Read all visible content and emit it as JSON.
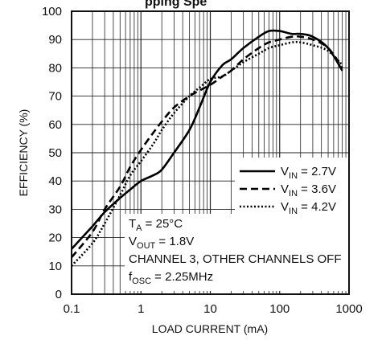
{
  "title_fragment": "pping Spe",
  "chart_data": {
    "type": "line",
    "xlabel": "LOAD CURRENT (mA)",
    "ylabel": "EFFICIENCY (%)",
    "xscale": "log",
    "xlim": [
      0.1,
      1000
    ],
    "ylim": [
      0,
      100
    ],
    "grid": true,
    "x_ticks": [
      "0.1",
      "1",
      "10",
      "100",
      "1000"
    ],
    "y_ticks": [
      "0",
      "10",
      "20",
      "30",
      "40",
      "50",
      "60",
      "70",
      "80",
      "90",
      "100"
    ],
    "legend_position": "center-right",
    "series": [
      {
        "name": "2.7V",
        "dash": "solid",
        "x": [
          0.1,
          0.2,
          0.3,
          0.5,
          0.7,
          1,
          1.5,
          2,
          3,
          5,
          7,
          10,
          15,
          20,
          30,
          50,
          70,
          100,
          150,
          200,
          300,
          500,
          800
        ],
        "y": [
          16,
          24,
          29,
          34,
          37,
          40,
          42,
          44,
          50,
          58,
          66,
          75,
          81,
          83,
          87,
          91,
          93,
          93,
          92,
          92,
          91,
          87,
          79
        ]
      },
      {
        "name": "3.6V",
        "dash": "dashed",
        "x": [
          0.1,
          0.2,
          0.3,
          0.5,
          0.7,
          1,
          1.5,
          2,
          3,
          5,
          7,
          10,
          15,
          20,
          30,
          50,
          70,
          100,
          150,
          200,
          300,
          500,
          800
        ],
        "y": [
          13,
          22,
          30,
          38,
          45,
          51,
          57,
          61,
          66,
          70,
          72,
          74,
          77,
          79,
          83,
          87,
          89,
          90,
          91,
          91,
          90,
          87,
          80
        ]
      },
      {
        "name": "4.2V",
        "dash": "dotted",
        "x": [
          0.1,
          0.2,
          0.3,
          0.5,
          0.7,
          1,
          1.5,
          2,
          3,
          5,
          7,
          10,
          15,
          20,
          30,
          50,
          70,
          100,
          150,
          200,
          300,
          500,
          800
        ],
        "y": [
          10,
          18,
          25,
          35,
          42,
          47,
          53,
          58,
          64,
          70,
          73,
          76,
          77,
          79,
          82,
          85,
          87,
          88,
          89,
          89,
          88,
          86,
          81
        ]
      }
    ],
    "legend": {
      "entries": [
        {
          "main": "V",
          "sub": "IN",
          "rest": " = 2.7V"
        },
        {
          "main": "V",
          "sub": "IN",
          "rest": " = 3.6V"
        },
        {
          "main": "V",
          "sub": "IN",
          "rest": " = 4.2V"
        }
      ]
    },
    "annotations": [
      {
        "main": "T",
        "sub": "A",
        "rest": " = 25°C"
      },
      {
        "main": "V",
        "sub": "OUT",
        "rest": " = 1.8V"
      },
      {
        "main": "CHANNEL 3, OTHER CHANNELS OFF",
        "sub": "",
        "rest": ""
      },
      {
        "main": "f",
        "sub": "OSC",
        "rest": " = 2.25MHz"
      }
    ]
  }
}
